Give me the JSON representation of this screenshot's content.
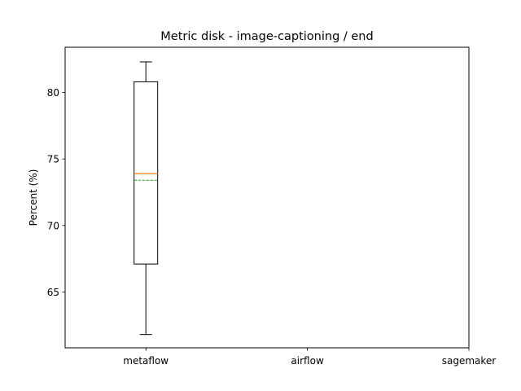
{
  "chart_data": {
    "type": "box",
    "title": "Metric disk - image-captioning / end",
    "xlabel": "",
    "ylabel": "Percent (%)",
    "categories": [
      "metaflow",
      "airflow",
      "sagemaker"
    ],
    "ylim": [
      60.8,
      83.4
    ],
    "yticks": [
      65,
      70,
      75,
      80
    ],
    "boxes": [
      {
        "category": "metaflow",
        "whisker_low": 61.8,
        "q1": 67.1,
        "median": 73.9,
        "mean": 73.4,
        "q3": 80.8,
        "whisker_high": 82.3
      }
    ],
    "colors": {
      "median": "#ff7f0e",
      "mean": "#2ca02c",
      "box": "#000000"
    }
  }
}
